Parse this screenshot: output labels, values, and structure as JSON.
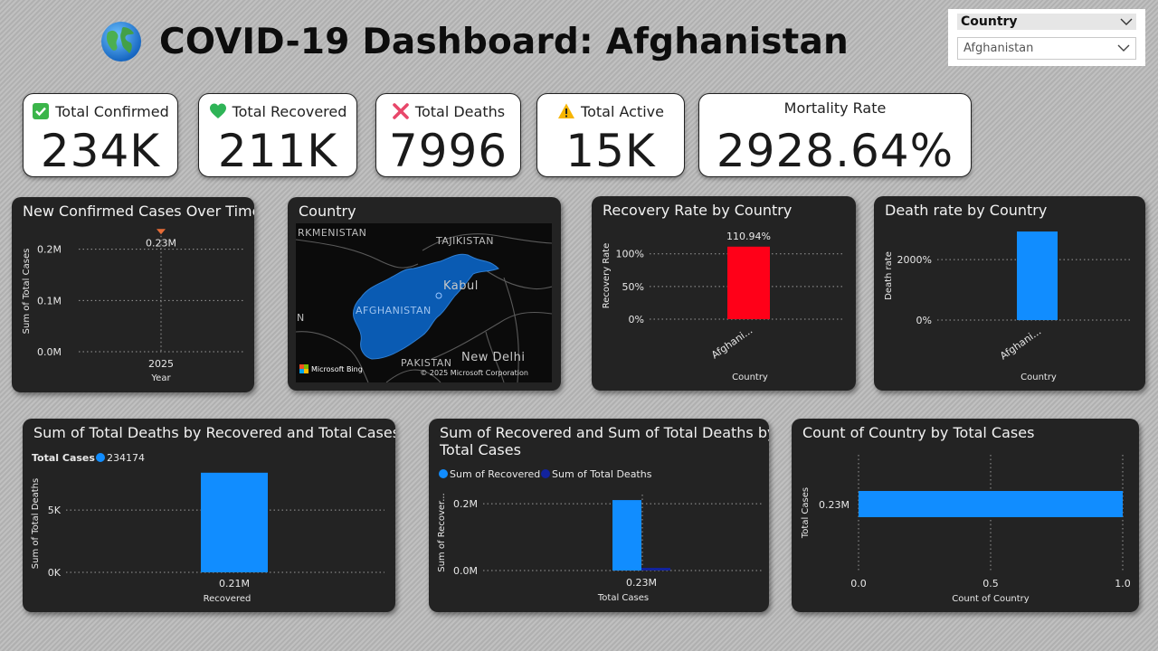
{
  "header": {
    "title": "COVID-19 Dashboard: Afghanistan",
    "icon": "globe-icon"
  },
  "slicer": {
    "title": "Country",
    "value": "Afghanistan"
  },
  "kpis": [
    {
      "label": "Total Confirmed",
      "value": "234K",
      "icon": "check-icon"
    },
    {
      "label": "Total Recovered",
      "value": "211K",
      "icon": "green-heart-icon"
    },
    {
      "label": "Total Deaths",
      "value": "7996",
      "icon": "cross-icon"
    },
    {
      "label": "Total Active",
      "value": "15K",
      "icon": "warning-icon"
    },
    {
      "label": "Mortality Rate",
      "value": "2928.64%"
    }
  ],
  "colors": {
    "accent_blue": "#118dff",
    "accent_red": "#ff0018",
    "navy": "#12239e",
    "marker": "#e66c37",
    "card_bg": "#232323"
  },
  "map": {
    "title": "Country",
    "labels": {
      "turkmenistan": "RKMENISTAN",
      "tajikistan": "TAJIKISTAN",
      "afghanistan": "AFGHANISTAN",
      "kabul": "Kabul",
      "pakistan": "PAKISTAN",
      "new_delhi": "New Delhi",
      "edge_n": "N"
    },
    "bing": "Microsoft Bing",
    "copyright": "© 2025 Microsoft Corporation"
  },
  "chart_data": [
    {
      "id": "new-confirmed",
      "type": "line",
      "title": "New Confirmed Cases Over Time",
      "xlabel": "Year",
      "ylabel": "Sum of Total Cases",
      "x": [
        2025
      ],
      "y": [
        234174
      ],
      "ylim": [
        0,
        240000
      ],
      "yticks": [
        {
          "v": 0,
          "label": "0.0M"
        },
        {
          "v": 100000,
          "label": "0.1M"
        },
        {
          "v": 200000,
          "label": "0.2M"
        }
      ],
      "xtick_labels": [
        "2025"
      ],
      "data_labels": [
        "0.23M"
      ]
    },
    {
      "id": "recovery-rate",
      "type": "bar",
      "title": "Recovery Rate by Country",
      "xlabel": "Country",
      "ylabel": "Recovery Rate",
      "categories": [
        "Afghani..."
      ],
      "values": [
        110.94
      ],
      "ylim": [
        0,
        130
      ],
      "yticks": [
        {
          "v": 0,
          "label": "0%"
        },
        {
          "v": 50,
          "label": "50%"
        },
        {
          "v": 100,
          "label": "100%"
        }
      ],
      "data_labels": [
        "110.94%"
      ]
    },
    {
      "id": "death-rate",
      "type": "bar",
      "title": "Death rate by Country",
      "xlabel": "Country",
      "ylabel": "Death rate",
      "categories": [
        "Afghani..."
      ],
      "values": [
        2928.64
      ],
      "ylim": [
        0,
        2900
      ],
      "yticks": [
        {
          "v": 0,
          "label": "0%"
        },
        {
          "v": 2000,
          "label": "2000%"
        }
      ]
    },
    {
      "id": "deaths-by-recovered",
      "type": "bar",
      "title": "Sum of Total Deaths by Recovered and Total Cases",
      "xlabel": "Recovered",
      "ylabel": "Sum of Total Deaths",
      "legend_title": "Total Cases",
      "categories": [
        "0.21M"
      ],
      "series": [
        {
          "name": "234174",
          "values": [
            7996
          ]
        }
      ],
      "ylim": [
        0,
        8200
      ],
      "yticks": [
        {
          "v": 0,
          "label": "0K"
        },
        {
          "v": 5000,
          "label": "5K"
        }
      ]
    },
    {
      "id": "recovered-and-deaths",
      "type": "bar",
      "title": "Sum of Recovered and Sum of Total Deaths by Total Cases",
      "title_lines": [
        "Sum of Recovered and Sum of Total Deaths by",
        "Total Cases"
      ],
      "xlabel": "Total Cases",
      "ylabel": "Sum of Recover...",
      "categories": [
        "0.23M"
      ],
      "series": [
        {
          "name": "Sum of Recovered",
          "values": [
            211000
          ]
        },
        {
          "name": "Sum of Total Deaths",
          "values": [
            7996
          ]
        }
      ],
      "ylim": [
        0,
        260000
      ],
      "yticks": [
        {
          "v": 0,
          "label": "0.0M"
        },
        {
          "v": 200000,
          "label": "0.2M"
        }
      ]
    },
    {
      "id": "count-of-country",
      "type": "bar",
      "orientation": "horizontal",
      "title": "Count of Country by Total Cases",
      "xlabel": "Count of Country",
      "ylabel": "Total Cases",
      "categories": [
        "0.23M"
      ],
      "values": [
        1
      ],
      "xlim": [
        0,
        1
      ],
      "xticks": [
        {
          "v": 0,
          "label": "0.0"
        },
        {
          "v": 0.5,
          "label": "0.5"
        },
        {
          "v": 1,
          "label": "1.0"
        }
      ]
    }
  ]
}
